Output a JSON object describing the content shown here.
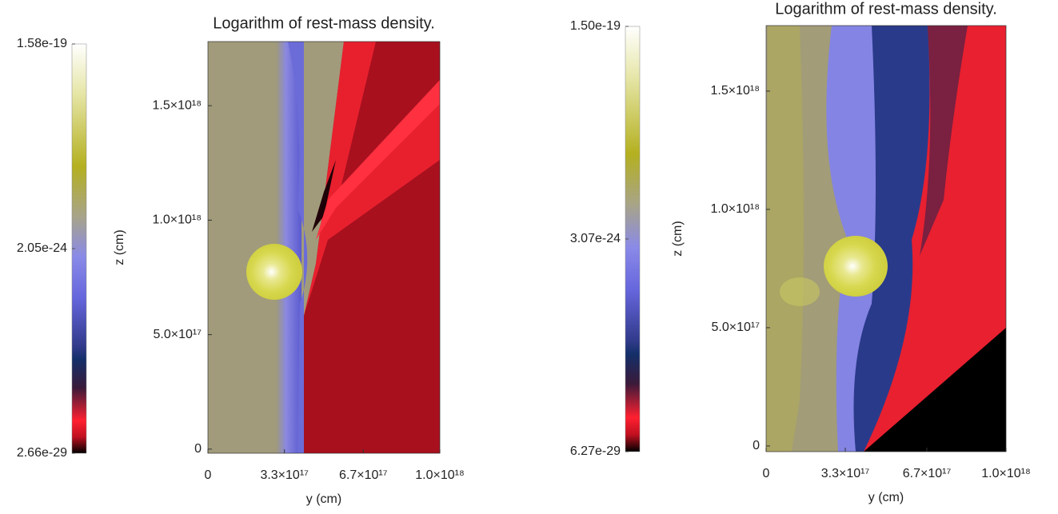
{
  "chart_data": [
    {
      "type": "heatmap",
      "title": "Logarithm of rest-mass density.",
      "xlabel": "y (cm)",
      "ylabel": "z (cm)",
      "xlim": [
        0,
        1e+18
      ],
      "ylim": [
        -1.8e+16,
        1.78e+18
      ],
      "xticks": [
        0,
        {
          "value": 3.3e+17,
          "label": "3.3×10¹⁷"
        },
        {
          "value": 6.7e+17,
          "label": "6.7×10¹⁷"
        },
        {
          "value": 1e+18,
          "label": "1.0×10¹⁸"
        }
      ],
      "yticks": [
        0,
        {
          "value": 5e+17,
          "label": "5.0×10¹⁷"
        },
        {
          "value": 1e+18,
          "label": "1.0×10¹⁸"
        },
        {
          "value": 1.5e+18,
          "label": "1.5×10¹⁸"
        }
      ],
      "colorbar": {
        "log": true,
        "lim": [
          2.66e-29,
          1.58e-19
        ],
        "ticks": [
          {
            "value": 1.58e-19,
            "label": "1.58e-19"
          },
          {
            "value": 2.05e-24,
            "label": "2.05e-24"
          },
          {
            "value": 2.66e-29,
            "label": "2.66e-29"
          }
        ]
      }
    },
    {
      "type": "heatmap",
      "title": "Logarithm of rest-mass density.",
      "xlabel": "y (cm)",
      "ylabel": "z (cm)",
      "xlim": [
        0,
        1e+18
      ],
      "ylim": [
        -2.4e+16,
        1.777e+18
      ],
      "xticks": [
        0,
        {
          "value": 3.3e+17,
          "label": "3.3×10¹⁷"
        },
        {
          "value": 6.7e+17,
          "label": "6.7×10¹⁷"
        },
        {
          "value": 1e+18,
          "label": "1.0×10¹⁸"
        }
      ],
      "yticks": [
        0,
        {
          "value": 5e+17,
          "label": "5.0×10¹⁷"
        },
        {
          "value": 1e+18,
          "label": "1.0×10¹⁸"
        },
        {
          "value": 1.5e+18,
          "label": "1.5×10¹⁸"
        }
      ],
      "colorbar": {
        "log": true,
        "lim": [
          6.27e-29,
          1.5e-19
        ],
        "ticks": [
          {
            "value": 1.5e-19,
            "label": "1.50e-19"
          },
          {
            "value": 3.07e-24,
            "label": "3.07e-24"
          },
          {
            "value": 6.27e-29,
            "label": "6.27e-29"
          }
        ]
      }
    }
  ]
}
